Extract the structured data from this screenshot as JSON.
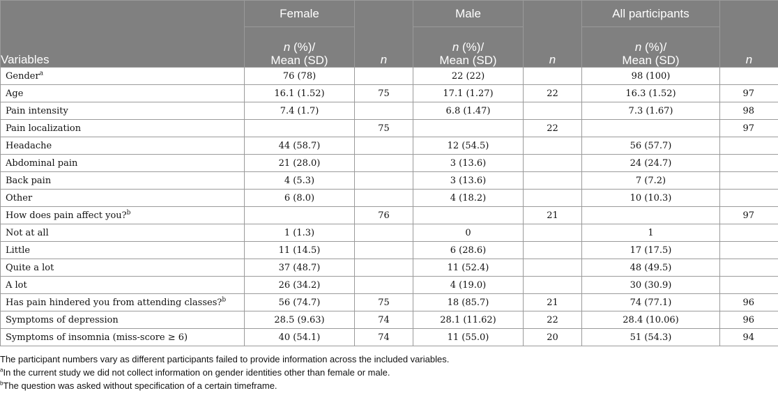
{
  "header": {
    "variables_label": "Variables",
    "groups": [
      "Female",
      "Male",
      "All participants"
    ],
    "sub_n": "n",
    "sub_rest_1": " (%)/",
    "sub_rest_2": "Mean (SD)",
    "n_label": "n"
  },
  "rows": [
    {
      "var": "Gender",
      "sup": "a",
      "f": "76 (78)",
      "fn": "",
      "m": "22 (22)",
      "mn": "",
      "a": "98 (100)",
      "an": ""
    },
    {
      "var": "Age",
      "sup": "",
      "f": "16.1 (1.52)",
      "fn": "75",
      "m": "17.1 (1.27)",
      "mn": "22",
      "a": "16.3 (1.52)",
      "an": "97"
    },
    {
      "var": "Pain intensity",
      "sup": "",
      "f": "7.4 (1.7)",
      "fn": "",
      "m": "6.8 (1.47)",
      "mn": "",
      "a": "7.3 (1.67)",
      "an": "98"
    },
    {
      "var": "Pain localization",
      "sup": "",
      "f": "",
      "fn": "75",
      "m": "",
      "mn": "22",
      "a": "",
      "an": "97"
    },
    {
      "var": "Headache",
      "sup": "",
      "f": "44 (58.7)",
      "fn": "",
      "m": "12 (54.5)",
      "mn": "",
      "a": "56 (57.7)",
      "an": ""
    },
    {
      "var": "Abdominal pain",
      "sup": "",
      "f": "21 (28.0)",
      "fn": "",
      "m": "3 (13.6)",
      "mn": "",
      "a": "24 (24.7)",
      "an": ""
    },
    {
      "var": "Back pain",
      "sup": "",
      "f": "4 (5.3)",
      "fn": "",
      "m": "3 (13.6)",
      "mn": "",
      "a": "7 (7.2)",
      "an": ""
    },
    {
      "var": "Other",
      "sup": "",
      "f": "6 (8.0)",
      "fn": "",
      "m": "4 (18.2)",
      "mn": "",
      "a": "10 (10.3)",
      "an": ""
    },
    {
      "var": "How does pain affect you?",
      "sup": "b",
      "f": "",
      "fn": "76",
      "m": "",
      "mn": "21",
      "a": "",
      "an": "97"
    },
    {
      "var": "Not at all",
      "sup": "",
      "f": "1 (1.3)",
      "fn": "",
      "m": "0",
      "mn": "",
      "a": "1",
      "an": ""
    },
    {
      "var": "Little",
      "sup": "",
      "f": "11 (14.5)",
      "fn": "",
      "m": "6 (28.6)",
      "mn": "",
      "a": "17 (17.5)",
      "an": ""
    },
    {
      "var": "Quite a lot",
      "sup": "",
      "f": "37 (48.7)",
      "fn": "",
      "m": "11 (52.4)",
      "mn": "",
      "a": "48 (49.5)",
      "an": ""
    },
    {
      "var": "A lot",
      "sup": "",
      "f": "26 (34.2)",
      "fn": "",
      "m": "4 (19.0)",
      "mn": "",
      "a": "30 (30.9)",
      "an": ""
    },
    {
      "var": "Has pain hindered you from attending classes?",
      "sup": "b",
      "f": "56 (74.7)",
      "fn": "75",
      "m": "18 (85.7)",
      "mn": "21",
      "a": "74 (77.1)",
      "an": "96"
    },
    {
      "var": "Symptoms of depression",
      "sup": "",
      "f": "28.5 (9.63)",
      "fn": "74",
      "m": "28.1 (11.62)",
      "mn": "22",
      "a": "28.4 (10.06)",
      "an": "96"
    },
    {
      "var": "Symptoms of insomnia (miss-score ≥ 6)",
      "sup": "",
      "f": "40 (54.1)",
      "fn": "74",
      "m": "11 (55.0)",
      "mn": "20",
      "a": "51 (54.3)",
      "an": "94"
    }
  ],
  "notes": [
    {
      "sup": "",
      "text": "The participant numbers vary as different participants failed to provide information across the included variables."
    },
    {
      "sup": "a",
      "text": "In the current study we did not collect information on gender identities other than female or male."
    },
    {
      "sup": "b",
      "text": "The question was asked without specification of a certain timeframe."
    }
  ],
  "colors": {
    "header_bg": "#808080",
    "header_text": "#ffffff",
    "border": "#9a9a9a"
  }
}
